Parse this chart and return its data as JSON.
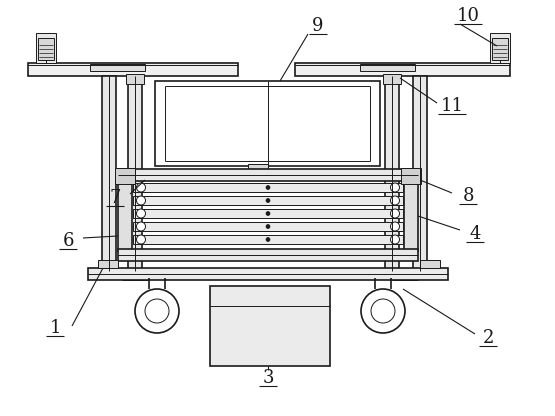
{
  "bg_color": "#ffffff",
  "line_color": "#1a1a1a",
  "lw": 1.2,
  "tlw": 0.7,
  "figsize": [
    5.55,
    4.16
  ],
  "dpi": 100,
  "label_fontsize": 13
}
